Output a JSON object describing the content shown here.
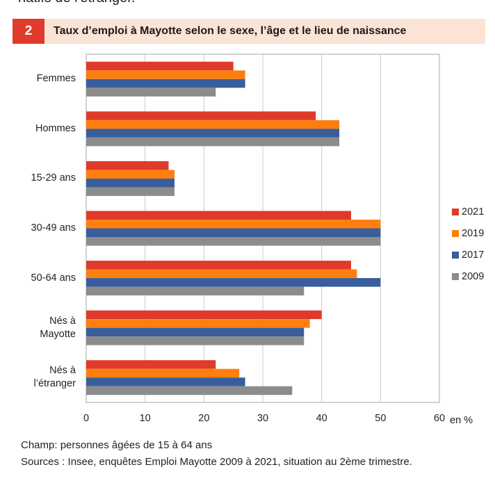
{
  "page": {
    "top_fragment": "natifs de l'étranger.",
    "figure_number": "2",
    "figure_title": "Taux d’emploi  à Mayotte selon le sexe, l’âge et le lieu de naissance",
    "notes": [
      "Champ: personnes âgées de 15 à 64 ans",
      "Sources : Insee, enquêtes Emploi Mayotte 2009 à 2021, situation au 2ème trimestre."
    ]
  },
  "chart_data": {
    "type": "bar",
    "orientation": "horizontal",
    "title": "Taux d’emploi  à Mayotte selon le sexe, l’âge et le lieu de naissance",
    "xlabel": "en %",
    "ylabel": "",
    "xlim": [
      0,
      60
    ],
    "ticks": [
      "0",
      "10",
      "20",
      "30",
      "40",
      "50",
      "60"
    ],
    "grid": true,
    "legend_position": "right",
    "categories": [
      [
        "Femmes"
      ],
      [
        "Hommes"
      ],
      [
        "15-29 ans"
      ],
      [
        "30-49 ans"
      ],
      [
        "50-64 ans"
      ],
      [
        "Nés à",
        "Mayotte"
      ],
      [
        "Nés à",
        "l’étranger"
      ]
    ],
    "series": [
      {
        "name": "2021",
        "color": "#e03a2c",
        "values": [
          25,
          39,
          14,
          45,
          45,
          40,
          22
        ]
      },
      {
        "name": "2019",
        "color": "#ff7f0e",
        "values": [
          27,
          43,
          15,
          50,
          46,
          38,
          26
        ]
      },
      {
        "name": "2017",
        "color": "#3a5d9c",
        "values": [
          27,
          43,
          15,
          50,
          50,
          37,
          27
        ]
      },
      {
        "name": "2009",
        "color": "#8c8c8c",
        "values": [
          22,
          43,
          15,
          50,
          37,
          37,
          35
        ]
      }
    ]
  }
}
